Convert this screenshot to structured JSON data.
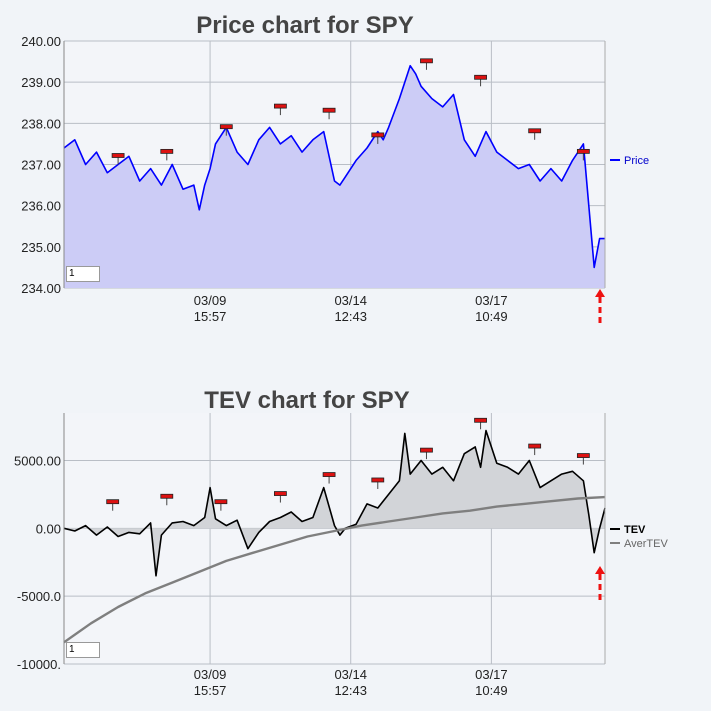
{
  "chart_data": [
    {
      "type": "area",
      "title": "Price chart for SPY",
      "ylim": [
        234.0,
        240.0
      ],
      "y_ticks": [
        "240.00",
        "239.00",
        "238.00",
        "237.00",
        "236.00",
        "235.00",
        "234.00"
      ],
      "y_tick_values": [
        240,
        239,
        238,
        237,
        236,
        235,
        234
      ],
      "x_ticks": [
        {
          "date": "03/09",
          "time": "15:57",
          "x": 0.27
        },
        {
          "date": "03/14",
          "time": "12:43",
          "x": 0.53
        },
        {
          "date": "03/17",
          "time": "10:49",
          "x": 0.79
        }
      ],
      "grid": true,
      "legend_position": "right",
      "series": [
        {
          "name": "Price",
          "color": "#0000ff",
          "fill": "#ccccf6",
          "x": [
            0.0,
            0.02,
            0.04,
            0.06,
            0.08,
            0.1,
            0.12,
            0.14,
            0.16,
            0.18,
            0.2,
            0.22,
            0.24,
            0.25,
            0.26,
            0.27,
            0.28,
            0.3,
            0.32,
            0.34,
            0.36,
            0.38,
            0.4,
            0.42,
            0.44,
            0.46,
            0.48,
            0.5,
            0.51,
            0.52,
            0.54,
            0.56,
            0.58,
            0.59,
            0.6,
            0.62,
            0.64,
            0.65,
            0.66,
            0.68,
            0.7,
            0.72,
            0.74,
            0.76,
            0.77,
            0.78,
            0.8,
            0.82,
            0.84,
            0.86,
            0.88,
            0.9,
            0.92,
            0.94,
            0.96,
            0.97,
            0.98,
            0.99,
            1.0
          ],
          "y": [
            237.4,
            237.6,
            237.0,
            237.3,
            236.8,
            237.0,
            237.2,
            236.6,
            236.9,
            236.5,
            237.0,
            236.4,
            236.5,
            235.9,
            236.5,
            236.9,
            237.5,
            237.9,
            237.3,
            237.0,
            237.6,
            237.9,
            237.5,
            237.7,
            237.3,
            237.6,
            237.8,
            236.6,
            236.5,
            236.7,
            237.1,
            237.4,
            237.8,
            237.6,
            237.9,
            238.6,
            239.4,
            239.2,
            238.9,
            238.6,
            238.4,
            238.7,
            237.6,
            237.2,
            237.5,
            237.8,
            237.3,
            237.1,
            236.9,
            237.0,
            236.6,
            236.9,
            236.6,
            237.1,
            237.5,
            236.0,
            234.5,
            235.2,
            235.2
          ],
          "markers": [
            {
              "x": 0.1,
              "y": 237.0
            },
            {
              "x": 0.19,
              "y": 237.1
            },
            {
              "x": 0.3,
              "y": 237.7
            },
            {
              "x": 0.4,
              "y": 238.2
            },
            {
              "x": 0.49,
              "y": 238.1
            },
            {
              "x": 0.58,
              "y": 237.5
            },
            {
              "x": 0.67,
              "y": 239.3
            },
            {
              "x": 0.77,
              "y": 238.9
            },
            {
              "x": 0.87,
              "y": 237.6
            },
            {
              "x": 0.96,
              "y": 237.1
            }
          ]
        }
      ],
      "input_value": "1"
    },
    {
      "type": "area",
      "title": "TEV chart for SPY",
      "ylim": [
        -10000,
        8500
      ],
      "y_ticks": [
        "5000.00",
        "0.00",
        "-5000.0",
        "-10000."
      ],
      "y_tick_values": [
        5000,
        0,
        -5000,
        -10000
      ],
      "x_ticks": [
        {
          "date": "03/09",
          "time": "15:57",
          "x": 0.27
        },
        {
          "date": "03/14",
          "time": "12:43",
          "x": 0.53
        },
        {
          "date": "03/17",
          "time": "10:49",
          "x": 0.79
        }
      ],
      "grid": true,
      "legend_position": "right",
      "series": [
        {
          "name": "TEV",
          "color": "#000000",
          "fill": "#d2d4d8",
          "x": [
            0.0,
            0.02,
            0.04,
            0.06,
            0.08,
            0.1,
            0.12,
            0.14,
            0.16,
            0.17,
            0.18,
            0.2,
            0.22,
            0.24,
            0.26,
            0.27,
            0.28,
            0.3,
            0.32,
            0.34,
            0.36,
            0.38,
            0.4,
            0.42,
            0.44,
            0.46,
            0.48,
            0.5,
            0.51,
            0.52,
            0.54,
            0.56,
            0.58,
            0.6,
            0.62,
            0.63,
            0.64,
            0.66,
            0.68,
            0.7,
            0.72,
            0.74,
            0.76,
            0.77,
            0.78,
            0.8,
            0.82,
            0.84,
            0.86,
            0.88,
            0.9,
            0.92,
            0.94,
            0.96,
            0.97,
            0.98,
            0.99,
            1.0
          ],
          "y": [
            0,
            -200,
            200,
            -500,
            100,
            -600,
            -300,
            -400,
            400,
            -3500,
            -500,
            400,
            500,
            200,
            800,
            3000,
            700,
            200,
            600,
            -1500,
            -300,
            500,
            800,
            1200,
            500,
            800,
            3000,
            200,
            -500,
            0,
            300,
            1800,
            1500,
            2500,
            3500,
            7000,
            4000,
            5000,
            4000,
            4500,
            3500,
            5500,
            6000,
            4500,
            7200,
            4800,
            4500,
            4000,
            5000,
            3000,
            3500,
            4000,
            4200,
            3500,
            1000,
            -1800,
            0,
            1500
          ],
          "markers": [
            {
              "x": 0.09,
              "y": 1300
            },
            {
              "x": 0.19,
              "y": 1700
            },
            {
              "x": 0.29,
              "y": 1300
            },
            {
              "x": 0.4,
              "y": 1900
            },
            {
              "x": 0.49,
              "y": 3300
            },
            {
              "x": 0.58,
              "y": 2900
            },
            {
              "x": 0.67,
              "y": 5100
            },
            {
              "x": 0.77,
              "y": 7300
            },
            {
              "x": 0.87,
              "y": 5400
            },
            {
              "x": 0.96,
              "y": 4700
            }
          ]
        },
        {
          "name": "AverTEV",
          "color": "#7f7f7f",
          "x": [
            0.0,
            0.05,
            0.1,
            0.15,
            0.2,
            0.25,
            0.3,
            0.35,
            0.4,
            0.45,
            0.5,
            0.55,
            0.6,
            0.65,
            0.7,
            0.75,
            0.8,
            0.85,
            0.9,
            0.95,
            1.0
          ],
          "y": [
            -8400,
            -7000,
            -5800,
            -4800,
            -4000,
            -3200,
            -2400,
            -1800,
            -1200,
            -600,
            -200,
            200,
            500,
            800,
            1100,
            1300,
            1600,
            1800,
            2000,
            2200,
            2300
          ]
        }
      ],
      "input_value": "1"
    }
  ]
}
